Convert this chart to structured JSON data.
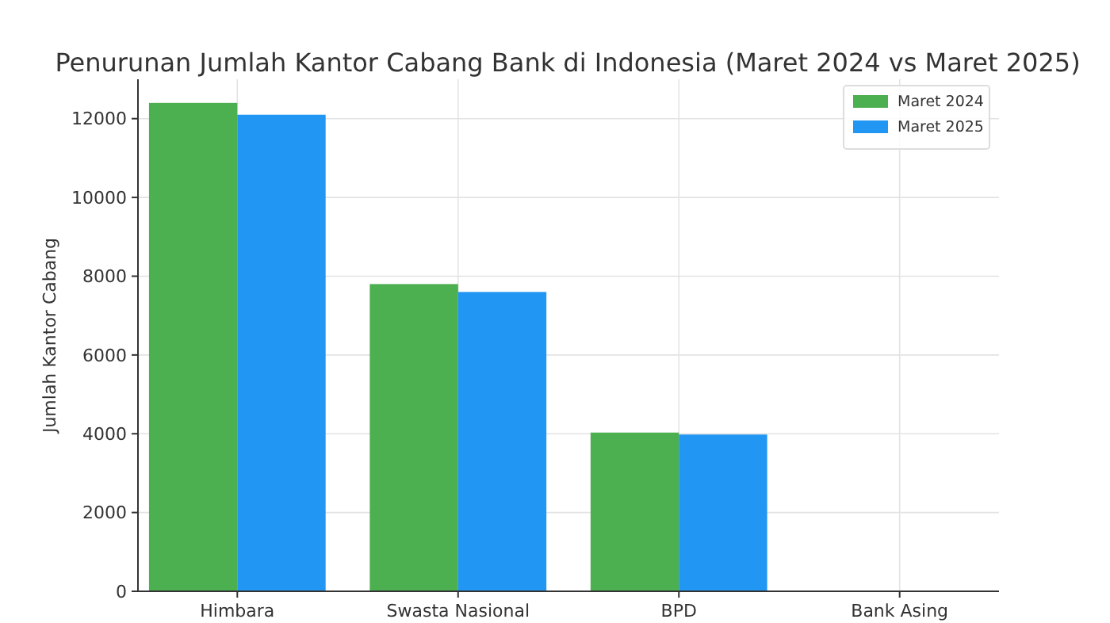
{
  "chart_data": {
    "type": "bar",
    "title": "Penurunan Jumlah Kantor Cabang Bank di Indonesia (Maret 2024 vs Maret 2025)",
    "ylabel": "Jumlah Kantor Cabang",
    "categories": [
      "Himbara",
      "Swasta Nasional",
      "BPD",
      "Bank Asing"
    ],
    "series": [
      {
        "name": "Maret 2024",
        "color": "#4caf50",
        "values": [
          12400,
          7800,
          4030,
          0
        ]
      },
      {
        "name": "Maret 2025",
        "color": "#2196f3",
        "values": [
          12100,
          7600,
          3980,
          0
        ]
      }
    ],
    "ylim": [
      0,
      13000
    ],
    "yticks": [
      0,
      2000,
      4000,
      6000,
      8000,
      10000,
      12000
    ],
    "grid": true,
    "legend": "top right"
  }
}
